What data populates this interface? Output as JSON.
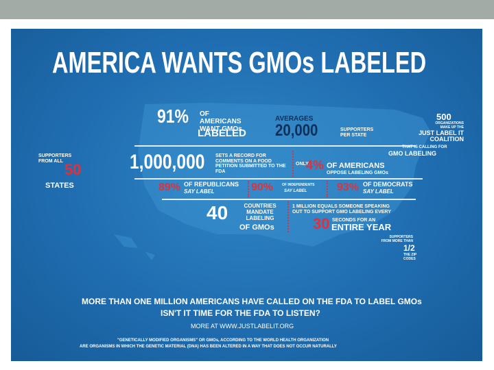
{
  "header": {
    "title": "AMERICA WANTS GMOs LABELED"
  },
  "stats": {
    "americans": {
      "value": "91%",
      "text": "OF AMERICANS WANT GMOs",
      "emphasis": "LABELED"
    },
    "averages": {
      "label": "AVERAGES",
      "value": "20,000",
      "text": "SUPPORTERS PER STATE"
    },
    "organizations": {
      "value": "500",
      "text": "ORGANIZATIONS MAKE UP THE",
      "emphasis": "JUST LABEL IT COALITION",
      "text2": "THAT IS CALLING FOR",
      "emphasis2": "GMO LABELING"
    },
    "states": {
      "label": "SUPPORTERS FROM ALL",
      "value": "50",
      "text": "STATES"
    },
    "comments": {
      "value": "1,000,000",
      "text": "SETS A RECORD FOR COMMENTS ON A FOOD PETITION SUBMITTED TO THE FDA"
    },
    "oppose": {
      "label": "ONLY",
      "value": "4%",
      "text": "OF AMERICANS",
      "text2": "OPPOSE LABELING GMOs"
    },
    "republicans": {
      "value": "89%",
      "text": "OF REPUBLICANS",
      "emphasis": "SAY LABEL"
    },
    "independents": {
      "value": "90%",
      "text": "OF INDEPENDENTS",
      "emphasis": "SAY LABEL"
    },
    "democrats": {
      "value": "93%",
      "text": "OF DEMOCRATS",
      "emphasis": "SAY LABEL"
    },
    "countries": {
      "value": "40",
      "text": "COUNTRIES MANDATE LABELING",
      "emphasis": "OF GMOs"
    },
    "seconds": {
      "text": "1 MILLION EQUALS SOMEONE SPEAKING OUT TO SUPPORT GMO LABELING EVERY",
      "value": "30",
      "text2": "SECONDS FOR AN",
      "emphasis": "ENTIRE YEAR"
    },
    "zipcodes": {
      "label": "SUPPORTERS FROM MORE THAN",
      "value": "1/2",
      "text": "THE ZIP CODES"
    }
  },
  "footer": {
    "line1": "MORE THAN ONE MILLION AMERICANS HAVE CALLED ON THE FDA TO LABEL GMOs",
    "line2": "ISN'T IT TIME FOR THE FDA TO LISTEN?",
    "link": "MORE AT WWW.JUSTLABELIT.ORG",
    "note1": "\"GENETICALLY MODIFIED ORGANISMS\" OR GMOs, ACCORDING TO THE WORLD HEALTH ORGANIZATION",
    "note2": "ARE ORGANISMS IN WHICH THE GENETIC MATERIAL (DNA) HAS BEEN ALTERED IN A WAY THAT DOES NOT OCCUR NATURALLY"
  }
}
